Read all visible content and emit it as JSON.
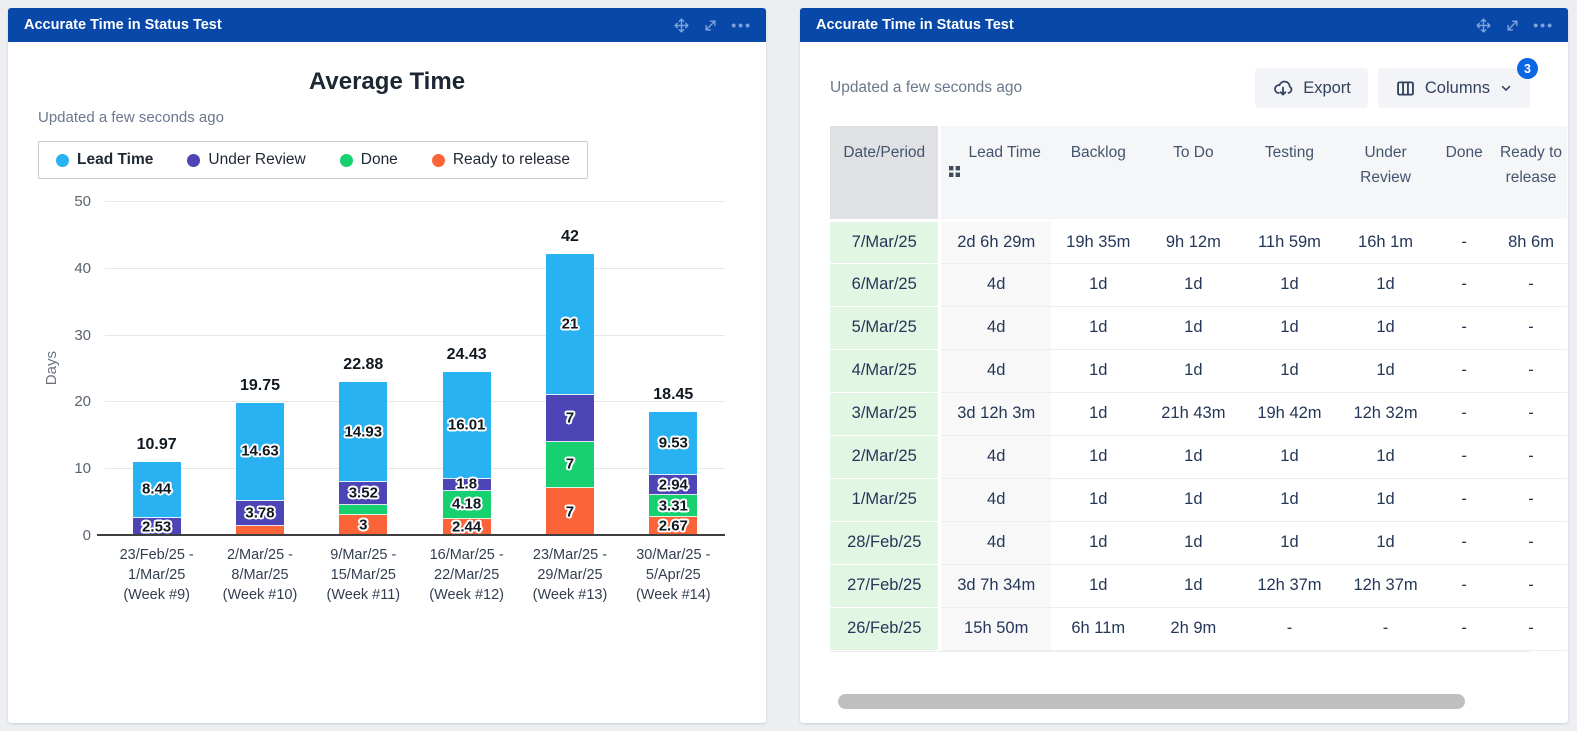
{
  "left_panel": {
    "title": "Accurate Time in Status Test",
    "updated": "Updated a few seconds ago"
  },
  "right_panel": {
    "title": "Accurate Time in Status Test",
    "updated": "Updated a few seconds ago",
    "export_label": "Export",
    "columns_label": "Columns",
    "columns_badge": "3",
    "table": {
      "columns": [
        "Date/Period",
        "Lead Time",
        "Backlog",
        "To Do",
        "Testing",
        "Under Review",
        "Done",
        "Ready to release"
      ],
      "rows": [
        [
          "7/Mar/25",
          "2d 6h 29m",
          "19h 35m",
          "9h 12m",
          "11h 59m",
          "16h 1m",
          "-",
          "8h 6m"
        ],
        [
          "6/Mar/25",
          "4d",
          "1d",
          "1d",
          "1d",
          "1d",
          "-",
          "-"
        ],
        [
          "5/Mar/25",
          "4d",
          "1d",
          "1d",
          "1d",
          "1d",
          "-",
          "-"
        ],
        [
          "4/Mar/25",
          "4d",
          "1d",
          "1d",
          "1d",
          "1d",
          "-",
          "-"
        ],
        [
          "3/Mar/25",
          "3d 12h 3m",
          "1d",
          "21h 43m",
          "19h 42m",
          "12h 32m",
          "-",
          "-"
        ],
        [
          "2/Mar/25",
          "4d",
          "1d",
          "1d",
          "1d",
          "1d",
          "-",
          "-"
        ],
        [
          "1/Mar/25",
          "4d",
          "1d",
          "1d",
          "1d",
          "1d",
          "-",
          "-"
        ],
        [
          "28/Feb/25",
          "4d",
          "1d",
          "1d",
          "1d",
          "1d",
          "-",
          "-"
        ],
        [
          "27/Feb/25",
          "3d 7h 34m",
          "1d",
          "1d",
          "12h 37m",
          "12h 37m",
          "-",
          "-"
        ],
        [
          "26/Feb/25",
          "15h 50m",
          "6h 11m",
          "2h 9m",
          "-",
          "-",
          "-",
          "-"
        ]
      ]
    }
  },
  "chart_data": {
    "type": "bar",
    "stacked": true,
    "title": "Average Time",
    "ylabel": "Days",
    "ylim": [
      0,
      50
    ],
    "yticks": [
      0,
      10,
      20,
      30,
      40,
      50
    ],
    "grid": true,
    "legend_position": "top-left",
    "categories": [
      "23/Feb/25 - 1/Mar/25 (Week #9)",
      "2/Mar/25 - 8/Mar/25 (Week #10)",
      "9/Mar/25 - 15/Mar/25 (Week #11)",
      "16/Mar/25 - 22/Mar/25 (Week #12)",
      "23/Mar/25 - 29/Mar/25 (Week #13)",
      "30/Mar/25 - 5/Apr/25 (Week #14)"
    ],
    "category_lines": [
      [
        "23/Feb/25 -",
        "1/Mar/25",
        "(Week #9)"
      ],
      [
        "2/Mar/25 -",
        "8/Mar/25",
        "(Week #10)"
      ],
      [
        "9/Mar/25 -",
        "15/Mar/25",
        "(Week #11)"
      ],
      [
        "16/Mar/25 -",
        "22/Mar/25",
        "(Week #12)"
      ],
      [
        "23/Mar/25 -",
        "29/Mar/25",
        "(Week #13)"
      ],
      [
        "30/Mar/25 -",
        "5/Apr/25",
        "(Week #14)"
      ]
    ],
    "series": [
      {
        "name": "Lead Time",
        "color": "#29B2F2",
        "values": [
          8.44,
          14.63,
          14.93,
          16.01,
          21,
          9.53
        ],
        "labels": [
          "8.44",
          "14.63",
          "14.93",
          "16.01",
          "21",
          "9.53"
        ]
      },
      {
        "name": "Under Review",
        "color": "#4D44B5",
        "values": [
          2.53,
          3.78,
          3.52,
          1.8,
          7,
          2.94
        ],
        "labels": [
          "2.53",
          "3.78",
          "3.52",
          "1.8",
          "7",
          "2.94"
        ]
      },
      {
        "name": "Done",
        "color": "#17D070",
        "values": [
          0,
          0,
          1.43,
          4.18,
          7,
          3.31
        ],
        "labels": [
          "",
          "",
          "",
          "4.18",
          "7",
          "3.31"
        ]
      },
      {
        "name": "Ready to release",
        "color": "#FA6438",
        "values": [
          0,
          1.34,
          3,
          2.44,
          7,
          2.67
        ],
        "labels": [
          "",
          "",
          "3",
          "2.44",
          "7",
          "2.67"
        ]
      }
    ],
    "stack_order_bottom_to_top": [
      "Ready to release",
      "Done",
      "Under Review",
      "Lead Time"
    ],
    "totals": [
      "10.97",
      "19.75",
      "22.88",
      "24.43",
      "42",
      "18.45"
    ]
  }
}
